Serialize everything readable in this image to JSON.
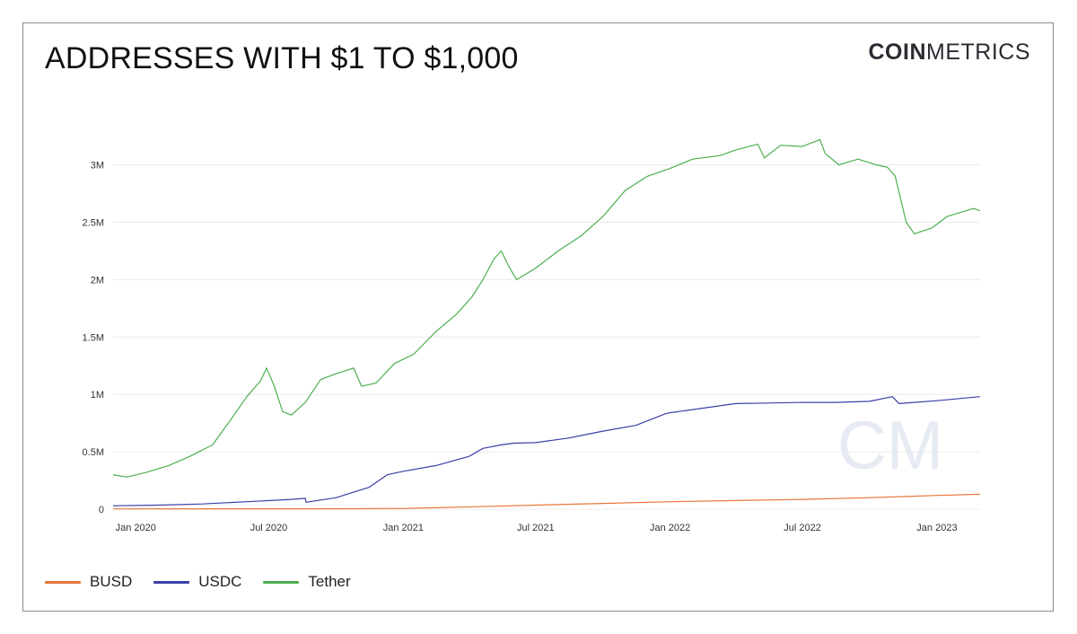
{
  "header": {
    "title": "ADDRESSES WITH $1 TO $1,000",
    "logo_bold": "COIN",
    "logo_light": "METRICS",
    "watermark": "CM"
  },
  "chart_data": {
    "type": "line",
    "title": "ADDRESSES WITH $1 TO $1,000",
    "xlabel": "",
    "ylabel": "",
    "ylim": [
      0,
      3200000
    ],
    "yticks": [
      {
        "value": 0,
        "label": "0"
      },
      {
        "value": 500000,
        "label": "0.5M"
      },
      {
        "value": 1000000,
        "label": "1M"
      },
      {
        "value": 1500000,
        "label": "1.5M"
      },
      {
        "value": 2000000,
        "label": "2M"
      },
      {
        "value": 2500000,
        "label": "2.5M"
      },
      {
        "value": 3000000,
        "label": "3M"
      }
    ],
    "xlim": [
      "2019-12-01",
      "2023-03-01"
    ],
    "xticks": [
      {
        "value": "2020-01-01",
        "label": "Jan 2020"
      },
      {
        "value": "2020-07-01",
        "label": "Jul 2020"
      },
      {
        "value": "2021-01-01",
        "label": "Jan 2021"
      },
      {
        "value": "2021-07-01",
        "label": "Jul 2021"
      },
      {
        "value": "2022-01-01",
        "label": "Jan 2022"
      },
      {
        "value": "2022-07-01",
        "label": "Jul 2022"
      },
      {
        "value": "2023-01-01",
        "label": "Jan 2023"
      }
    ],
    "grid": true,
    "legend_position": "bottom-left",
    "series": [
      {
        "name": "BUSD",
        "color": "#e8763a",
        "points": [
          [
            "2019-12-01",
            2000
          ],
          [
            "2020-03-01",
            3000
          ],
          [
            "2020-07-01",
            3000
          ],
          [
            "2020-10-01",
            4000
          ],
          [
            "2021-01-01",
            6000
          ],
          [
            "2021-03-01",
            15000
          ],
          [
            "2021-05-01",
            25000
          ],
          [
            "2021-07-01",
            35000
          ],
          [
            "2021-10-01",
            50000
          ],
          [
            "2022-01-01",
            65000
          ],
          [
            "2022-04-01",
            75000
          ],
          [
            "2022-07-01",
            85000
          ],
          [
            "2022-10-01",
            100000
          ],
          [
            "2023-01-01",
            120000
          ],
          [
            "2023-03-01",
            130000
          ]
        ]
      },
      {
        "name": "USDC",
        "color": "#3b3fa8",
        "points": [
          [
            "2019-12-01",
            30000
          ],
          [
            "2020-02-01",
            35000
          ],
          [
            "2020-04-01",
            45000
          ],
          [
            "2020-06-01",
            65000
          ],
          [
            "2020-08-01",
            85000
          ],
          [
            "2020-08-20",
            95000
          ],
          [
            "2020-08-21",
            60000
          ],
          [
            "2020-10-01",
            100000
          ],
          [
            "2020-11-15",
            190000
          ],
          [
            "2020-12-10",
            300000
          ],
          [
            "2021-01-01",
            330000
          ],
          [
            "2021-02-15",
            380000
          ],
          [
            "2021-04-01",
            460000
          ],
          [
            "2021-04-20",
            530000
          ],
          [
            "2021-05-15",
            560000
          ],
          [
            "2021-06-01",
            575000
          ],
          [
            "2021-07-01",
            580000
          ],
          [
            "2021-08-15",
            620000
          ],
          [
            "2021-10-01",
            680000
          ],
          [
            "2021-11-15",
            730000
          ],
          [
            "2021-12-25",
            830000
          ],
          [
            "2022-01-01",
            840000
          ],
          [
            "2022-02-15",
            880000
          ],
          [
            "2022-04-01",
            920000
          ],
          [
            "2022-05-15",
            925000
          ],
          [
            "2022-07-01",
            930000
          ],
          [
            "2022-08-15",
            930000
          ],
          [
            "2022-10-01",
            940000
          ],
          [
            "2022-11-01",
            980000
          ],
          [
            "2022-11-10",
            920000
          ],
          [
            "2022-12-01",
            930000
          ],
          [
            "2023-01-01",
            945000
          ],
          [
            "2023-03-01",
            980000
          ]
        ]
      },
      {
        "name": "Tether",
        "color": "#4caf50",
        "points": [
          [
            "2019-12-01",
            300000
          ],
          [
            "2019-12-20",
            280000
          ],
          [
            "2020-01-15",
            320000
          ],
          [
            "2020-02-15",
            380000
          ],
          [
            "2020-03-15",
            460000
          ],
          [
            "2020-04-15",
            560000
          ],
          [
            "2020-05-10",
            780000
          ],
          [
            "2020-06-01",
            980000
          ],
          [
            "2020-06-20",
            1120000
          ],
          [
            "2020-06-28",
            1230000
          ],
          [
            "2020-07-08",
            1080000
          ],
          [
            "2020-07-20",
            850000
          ],
          [
            "2020-08-01",
            820000
          ],
          [
            "2020-08-20",
            930000
          ],
          [
            "2020-09-10",
            1130000
          ],
          [
            "2020-10-01",
            1180000
          ],
          [
            "2020-10-25",
            1230000
          ],
          [
            "2020-11-05",
            1070000
          ],
          [
            "2020-11-25",
            1100000
          ],
          [
            "2020-12-20",
            1270000
          ],
          [
            "2021-01-15",
            1350000
          ],
          [
            "2021-02-15",
            1550000
          ],
          [
            "2021-03-15",
            1700000
          ],
          [
            "2021-04-05",
            1850000
          ],
          [
            "2021-04-20",
            2000000
          ],
          [
            "2021-05-05",
            2180000
          ],
          [
            "2021-05-15",
            2250000
          ],
          [
            "2021-05-25",
            2120000
          ],
          [
            "2021-06-05",
            2000000
          ],
          [
            "2021-07-01",
            2100000
          ],
          [
            "2021-08-01",
            2250000
          ],
          [
            "2021-09-01",
            2380000
          ],
          [
            "2021-10-01",
            2550000
          ],
          [
            "2021-11-01",
            2780000
          ],
          [
            "2021-12-01",
            2900000
          ],
          [
            "2022-01-01",
            2970000
          ],
          [
            "2022-02-01",
            3050000
          ],
          [
            "2022-03-10",
            3080000
          ],
          [
            "2022-04-01",
            3130000
          ],
          [
            "2022-05-01",
            3180000
          ],
          [
            "2022-05-10",
            3060000
          ],
          [
            "2022-06-01",
            3170000
          ],
          [
            "2022-07-01",
            3160000
          ],
          [
            "2022-07-25",
            3220000
          ],
          [
            "2022-08-01",
            3100000
          ],
          [
            "2022-08-20",
            3000000
          ],
          [
            "2022-09-15",
            3050000
          ],
          [
            "2022-10-10",
            3000000
          ],
          [
            "2022-10-25",
            2980000
          ],
          [
            "2022-11-05",
            2900000
          ],
          [
            "2022-11-20",
            2500000
          ],
          [
            "2022-12-01",
            2400000
          ],
          [
            "2022-12-25",
            2450000
          ],
          [
            "2023-01-15",
            2550000
          ],
          [
            "2023-02-20",
            2620000
          ],
          [
            "2023-03-01",
            2600000
          ]
        ]
      }
    ]
  },
  "legend": {
    "items": [
      {
        "label": "BUSD",
        "color": "#e8763a"
      },
      {
        "label": "USDC",
        "color": "#3b3fa8"
      },
      {
        "label": "Tether",
        "color": "#4caf50"
      }
    ]
  }
}
